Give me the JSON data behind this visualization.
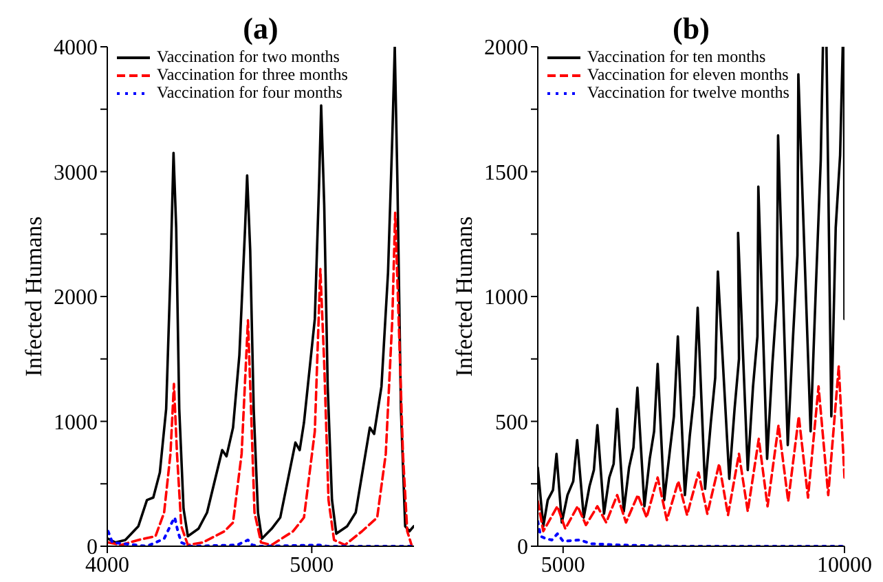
{
  "chart_data": [
    {
      "type": "line",
      "title": "(a)",
      "ylabel": "Infected Humans",
      "xlim": [
        4000,
        5500
      ],
      "xticks": [
        4000,
        5000
      ],
      "ylim": [
        0,
        4000
      ],
      "yticks": [
        0,
        {
          "value": 500,
          "label": null
        },
        1000,
        {
          "value": 1500,
          "label": null
        },
        2000,
        {
          "value": 2500,
          "label": null
        },
        3000,
        {
          "value": 3500,
          "label": null
        },
        4000
      ],
      "legend": "top",
      "marker": "none",
      "series": [
        {
          "name": "Vaccination for two months",
          "color": "#000000",
          "line_style": "solid",
          "x": [
            4004,
            4040,
            4088,
            4152,
            4194,
            4225,
            4257,
            4288,
            4309,
            4324,
            4337,
            4352,
            4373,
            4394,
            4446,
            4488,
            4562,
            4583,
            4615,
            4646,
            4674,
            4684,
            4699,
            4716,
            4737,
            4756,
            4804,
            4846,
            4920,
            4941,
            4962,
            5015,
            5036,
            5046,
            5061,
            5078,
            5099,
            5120,
            5173,
            5215,
            5284,
            5305,
            5341,
            5373,
            5394,
            5406,
            5419,
            5436,
            5457,
            5478,
            5499
          ],
          "values": [
            60,
            30,
            50,
            160,
            370,
            390,
            590,
            1100,
            2190,
            3150,
            2550,
            1100,
            300,
            80,
            140,
            270,
            770,
            720,
            950,
            1530,
            2550,
            2970,
            2370,
            1100,
            270,
            60,
            140,
            230,
            830,
            770,
            990,
            1820,
            2910,
            3530,
            2730,
            1280,
            370,
            100,
            160,
            270,
            950,
            900,
            1280,
            2190,
            3280,
            4000,
            2910,
            1100,
            160,
            120,
            160
          ]
        },
        {
          "name": "Vaccination for three months",
          "color": "#ff0000",
          "line_style": "dashed",
          "x": [
            4004,
            4067,
            4152,
            4236,
            4278,
            4309,
            4326,
            4341,
            4362,
            4394,
            4467,
            4573,
            4615,
            4657,
            4688,
            4703,
            4720,
            4752,
            4804,
            4909,
            4962,
            5015,
            5042,
            5061,
            5082,
            5109,
            5162,
            5246,
            5320,
            5362,
            5394,
            5408,
            5425,
            5446,
            5467,
            5488
          ],
          "values": [
            30,
            10,
            50,
            80,
            270,
            740,
            1300,
            740,
            160,
            10,
            30,
            120,
            190,
            740,
            1810,
            1100,
            270,
            30,
            10,
            120,
            230,
            920,
            2220,
            1460,
            370,
            50,
            10,
            120,
            230,
            740,
            1820,
            2670,
            1820,
            740,
            120,
            10
          ]
        },
        {
          "name": "Vaccination for four months",
          "color": "#0000ff",
          "line_style": "dotted",
          "x": [
            4004,
            4025,
            4194,
            4278,
            4316,
            4330,
            4345,
            4362,
            4404,
            4636,
            4688,
            4709,
            4741,
            5036,
            5078,
            5499
          ],
          "values": [
            120,
            30,
            0,
            60,
            190,
            230,
            120,
            30,
            0,
            10,
            50,
            10,
            0,
            10,
            0,
            0
          ]
        }
      ]
    },
    {
      "type": "line",
      "title": "(b)",
      "ylabel": "Infected Humans",
      "xlim": [
        4550,
        10000
      ],
      "xticks": [
        5000,
        10000
      ],
      "ylim": [
        0,
        2000
      ],
      "yticks": [
        0,
        {
          "value": 250,
          "label": null
        },
        500,
        {
          "value": 750,
          "label": null
        },
        1000,
        {
          "value": 1250,
          "label": null
        },
        1500,
        {
          "value": 1750,
          "label": null
        },
        2000
      ],
      "legend": "top",
      "marker": "none",
      "series": [
        {
          "name": "Vaccination for ten months",
          "color": "#000000",
          "line_style": "solid",
          "x": [
            4550,
            4648,
            4727,
            4820,
            4883,
            4977,
            5078,
            5180,
            5250,
            5367,
            5469,
            5547,
            5609,
            5727,
            5820,
            5898,
            5961,
            6078,
            6172,
            6250,
            6320,
            6445,
            6539,
            6617,
            6680,
            6797,
            6898,
            6969,
            7039,
            7164,
            7250,
            7328,
            7391,
            7523,
            7625,
            7703,
            7750,
            7953,
            8047,
            8125,
            8109,
            8281,
            8375,
            8453,
            8469,
            8625,
            8719,
            8797,
            8820,
            8992,
            9086,
            9164,
            9180,
            9398,
            9492,
            9578,
            9617,
            9630,
            9680,
            9766,
            9844,
            9922,
            9969,
            9985,
            9992,
            10000
          ],
          "values": [
            315,
            80,
            185,
            225,
            370,
            95,
            205,
            260,
            425,
            115,
            240,
            305,
            485,
            130,
            275,
            330,
            550,
            140,
            315,
            395,
            635,
            160,
            350,
            460,
            730,
            185,
            385,
            520,
            840,
            205,
            440,
            605,
            955,
            230,
            495,
            675,
            1100,
            270,
            550,
            750,
            1255,
            305,
            640,
            840,
            1440,
            350,
            730,
            985,
            1645,
            405,
            840,
            1165,
            1890,
            460,
            1040,
            1545,
            2000,
            null,
            2000,
            520,
            1275,
            1565,
            2000,
            null,
            2000,
            910
          ]
        },
        {
          "name": "Vaccination for eleven months",
          "color": "#ff0000",
          "line_style": "dashed",
          "x": [
            4550,
            4648,
            4898,
            5039,
            5258,
            5406,
            5609,
            5766,
            5961,
            6117,
            6328,
            6484,
            6680,
            6844,
            7047,
            7203,
            7406,
            7563,
            7773,
            7930,
            8125,
            8281,
            8477,
            8633,
            8828,
            9000,
            9188,
            9352,
            9539,
            9711,
            9898,
            10000
          ],
          "values": [
            180,
            60,
            160,
            70,
            160,
            85,
            160,
            95,
            205,
            95,
            205,
            115,
            275,
            105,
            260,
            125,
            295,
            130,
            330,
            125,
            370,
            140,
            430,
            160,
            485,
            180,
            520,
            195,
            640,
            205,
            720,
            275
          ]
        },
        {
          "name": "Vaccination for twelve months",
          "color": "#0000ff",
          "line_style": "dotted",
          "x": [
            4550,
            4600,
            4700,
            4800,
            4900,
            5000,
            5300,
            5500,
            6000,
            7000,
            8000,
            10000
          ],
          "values": [
            100,
            40,
            30,
            25,
            50,
            20,
            25,
            10,
            5,
            0,
            0,
            0
          ]
        }
      ]
    }
  ]
}
